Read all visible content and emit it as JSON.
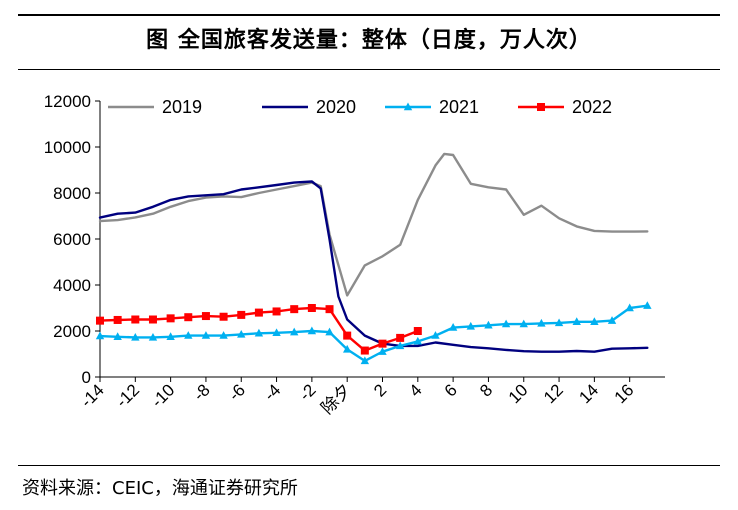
{
  "title": "图 全国旅客发送量：整体（日度，万人次）",
  "source": "资料来源：CEIC，海通证券研究所",
  "chart_data": {
    "type": "line",
    "title": "图 全国旅客发送量：整体（日度，万人次）",
    "xlabel": "",
    "ylabel": "",
    "ylim": [
      0,
      12000
    ],
    "yticks": [
      0,
      2000,
      4000,
      6000,
      8000,
      10000,
      12000
    ],
    "xlim": [
      -14,
      18
    ],
    "xtick_labels": [
      "-14",
      "-12",
      "-10",
      "-8",
      "-6",
      "-4",
      "-2",
      "除夕",
      "2",
      "4",
      "6",
      "8",
      "10",
      "12",
      "14",
      "16"
    ],
    "xtick_values": [
      -14,
      -12,
      -10,
      -8,
      -6,
      -4,
      -2,
      0,
      2,
      4,
      6,
      8,
      10,
      12,
      14,
      16
    ],
    "grid": false,
    "legend": "top",
    "series": [
      {
        "name": "2019",
        "color": "#8c8c8c",
        "marker": "none",
        "x": [
          -14,
          -13,
          -12,
          -11,
          -10,
          -9,
          -8,
          -7,
          -6,
          -5,
          -4,
          -3,
          -2,
          -1.5,
          -1,
          0,
          1,
          2,
          3,
          4,
          5,
          5.5,
          6,
          7,
          8,
          9,
          10,
          11,
          12,
          13,
          14,
          15,
          16,
          17
        ],
        "values": [
          6780,
          6820,
          6940,
          7100,
          7400,
          7650,
          7800,
          7850,
          7820,
          8000,
          8150,
          8300,
          8450,
          8300,
          6200,
          3550,
          4850,
          5250,
          5750,
          7700,
          9200,
          9700,
          9650,
          8400,
          8250,
          8150,
          7050,
          7450,
          6900,
          6550,
          6350,
          6320,
          6320,
          6330
        ]
      },
      {
        "name": "2020",
        "color": "#00007f",
        "marker": "none",
        "x": [
          -14,
          -13,
          -12,
          -11,
          -10,
          -9,
          -8,
          -7,
          -6,
          -5,
          -4,
          -3,
          -2,
          -1.5,
          -1,
          -0.5,
          0,
          1,
          2,
          3,
          4,
          5,
          6,
          7,
          8,
          9,
          10,
          11,
          12,
          13,
          14,
          15,
          16,
          17
        ],
        "values": [
          6930,
          7100,
          7150,
          7400,
          7700,
          7850,
          7900,
          7950,
          8150,
          8250,
          8350,
          8450,
          8500,
          8200,
          6000,
          3500,
          2500,
          1800,
          1450,
          1350,
          1350,
          1500,
          1400,
          1300,
          1250,
          1180,
          1120,
          1100,
          1100,
          1130,
          1100,
          1230,
          1250,
          1270
        ]
      },
      {
        "name": "2021",
        "color": "#00b0f0",
        "marker": "triangle",
        "x": [
          -14,
          -13,
          -12,
          -11,
          -10,
          -9,
          -8,
          -7,
          -6,
          -5,
          -4,
          -3,
          -2,
          -1,
          0,
          1,
          2,
          3,
          4,
          5,
          6,
          7,
          8,
          9,
          10,
          11,
          12,
          13,
          14,
          15,
          16,
          17
        ],
        "values": [
          1780,
          1750,
          1720,
          1720,
          1750,
          1800,
          1800,
          1800,
          1850,
          1900,
          1920,
          1950,
          2000,
          1950,
          1200,
          700,
          1100,
          1350,
          1550,
          1800,
          2150,
          2200,
          2250,
          2300,
          2300,
          2330,
          2350,
          2400,
          2400,
          2450,
          3000,
          3100
        ]
      },
      {
        "name": "2022",
        "color": "#ff0000",
        "marker": "square",
        "x": [
          -14,
          -13,
          -12,
          -11,
          -10,
          -9,
          -8,
          -7,
          -6,
          -5,
          -4,
          -3,
          -2,
          -1,
          0,
          1,
          2,
          3,
          4
        ],
        "values": [
          2450,
          2480,
          2500,
          2500,
          2550,
          2600,
          2650,
          2620,
          2700,
          2800,
          2850,
          2950,
          3000,
          2950,
          1800,
          1150,
          1450,
          1700,
          2000
        ]
      }
    ]
  }
}
